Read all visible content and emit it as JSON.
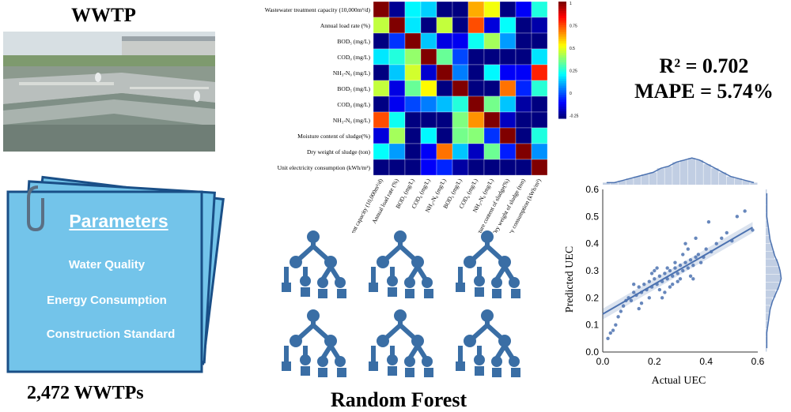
{
  "wwtp": {
    "title": "WWTP"
  },
  "count_label": "2,472 WWTPs",
  "parameters": {
    "heading": "Parameters",
    "items": [
      "Water Quality",
      "Energy Consumption",
      "Construction Standard"
    ]
  },
  "model_label": "Random Forest",
  "metrics": {
    "r2": "R² = 0.702",
    "mape": "MAPE = 5.74%"
  },
  "colors": {
    "card": "#73c4ea",
    "card_dark": "#1a4f87",
    "tree": "#3a6ea5",
    "scatter": "#4c72b0"
  },
  "heatmap": {
    "variables": [
      "Wastewater treatment capacity (10,000m³/d)",
      "Annual load rate (%)",
      "BOD₅ (mg/L)",
      "COD₀ (mg/L)",
      "NH₃-N₀ (mg/L)",
      "BOD₅ (mg/L)",
      "COD₀ (mg/L)",
      "NH₃-N₀ (mg/L)",
      "Moisture content of sludge(%)",
      "Dry weight of sludge (ton)",
      "Unit electricity consumption (kWh/m³)"
    ],
    "colorbar_ticks": [
      "1",
      "0.75",
      "0.5",
      "0.25",
      "0",
      "-0.25"
    ]
  },
  "chart_data": {
    "type": "scatter",
    "title": "",
    "xlabel": "Actual UEC",
    "ylabel": "Predicted UEC",
    "xlim": [
      0.0,
      0.6
    ],
    "ylim": [
      0.0,
      0.6
    ],
    "xticks": [
      "0.0",
      "0.2",
      "0.4",
      "0.6"
    ],
    "yticks": [
      "0.0",
      "0.1",
      "0.2",
      "0.3",
      "0.4",
      "0.5",
      "0.6"
    ],
    "regression": {
      "x": [
        0.0,
        0.58
      ],
      "y": [
        0.14,
        0.46
      ]
    },
    "points": {
      "x": [
        0.02,
        0.03,
        0.04,
        0.05,
        0.06,
        0.07,
        0.08,
        0.09,
        0.1,
        0.11,
        0.12,
        0.13,
        0.14,
        0.15,
        0.16,
        0.17,
        0.18,
        0.19,
        0.2,
        0.21,
        0.22,
        0.23,
        0.24,
        0.25,
        0.26,
        0.27,
        0.28,
        0.29,
        0.3,
        0.31,
        0.32,
        0.33,
        0.34,
        0.35,
        0.36,
        0.37,
        0.38,
        0.4,
        0.42,
        0.44,
        0.46,
        0.48,
        0.5,
        0.52,
        0.55,
        0.58,
        0.15,
        0.18,
        0.22,
        0.25,
        0.28,
        0.31,
        0.34,
        0.2,
        0.23,
        0.26,
        0.29,
        0.32,
        0.35,
        0.24,
        0.27,
        0.3,
        0.19,
        0.21,
        0.36,
        0.39,
        0.41,
        0.12,
        0.14,
        0.33
      ],
      "y": [
        0.05,
        0.07,
        0.08,
        0.1,
        0.13,
        0.15,
        0.17,
        0.19,
        0.2,
        0.19,
        0.22,
        0.21,
        0.24,
        0.22,
        0.25,
        0.23,
        0.26,
        0.24,
        0.27,
        0.25,
        0.28,
        0.26,
        0.29,
        0.27,
        0.3,
        0.28,
        0.31,
        0.29,
        0.32,
        0.3,
        0.33,
        0.31,
        0.34,
        0.32,
        0.35,
        0.36,
        0.33,
        0.38,
        0.37,
        0.4,
        0.42,
        0.44,
        0.41,
        0.5,
        0.52,
        0.45,
        0.18,
        0.2,
        0.23,
        0.31,
        0.33,
        0.36,
        0.28,
        0.3,
        0.2,
        0.24,
        0.26,
        0.4,
        0.27,
        0.22,
        0.25,
        0.27,
        0.29,
        0.31,
        0.42,
        0.35,
        0.48,
        0.25,
        0.16,
        0.38
      ]
    }
  }
}
